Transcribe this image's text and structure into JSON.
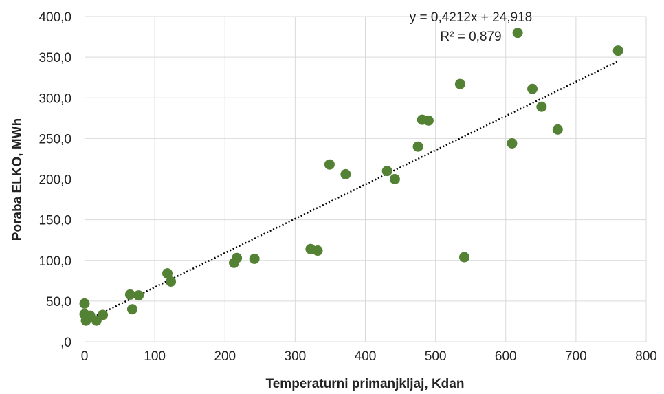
{
  "chart_data": {
    "type": "scatter",
    "xlabel": "Temperaturni primanjkljaj, Kdan",
    "ylabel": "Poraba ELKO, MWh",
    "xlim": [
      0,
      800
    ],
    "ylim": [
      0,
      400
    ],
    "x_ticks": [
      0,
      100,
      200,
      300,
      400,
      500,
      600,
      700,
      800
    ],
    "y_ticks": [
      0,
      50,
      100,
      150,
      200,
      250,
      300,
      350,
      400
    ],
    "x_tick_labels": [
      "0",
      "100",
      "200",
      "300",
      "400",
      "500",
      "600",
      "700",
      "800"
    ],
    "y_tick_labels": [
      ",0",
      "50,0",
      "100,0",
      "150,0",
      "200,0",
      "250,0",
      "300,0",
      "350,0",
      "400,0"
    ],
    "grid": true,
    "marker_color": "#548235",
    "trendline": {
      "slope": 0.4212,
      "intercept": 24.918,
      "x_range": [
        0,
        760
      ],
      "equation_label": "y = 0,4212x + 24,918",
      "r2_label": "R² = 0,879",
      "style": "dotted",
      "color": "#000000"
    },
    "points": [
      {
        "x": 0,
        "y": 47
      },
      {
        "x": 0,
        "y": 34
      },
      {
        "x": 2,
        "y": 26
      },
      {
        "x": 3,
        "y": 30
      },
      {
        "x": 8,
        "y": 32
      },
      {
        "x": 17,
        "y": 26
      },
      {
        "x": 26,
        "y": 33
      },
      {
        "x": 65,
        "y": 58
      },
      {
        "x": 68,
        "y": 40
      },
      {
        "x": 77,
        "y": 57
      },
      {
        "x": 118,
        "y": 84
      },
      {
        "x": 123,
        "y": 74
      },
      {
        "x": 213,
        "y": 97
      },
      {
        "x": 217,
        "y": 103
      },
      {
        "x": 242,
        "y": 102
      },
      {
        "x": 322,
        "y": 114
      },
      {
        "x": 332,
        "y": 112
      },
      {
        "x": 349,
        "y": 218
      },
      {
        "x": 372,
        "y": 206
      },
      {
        "x": 431,
        "y": 210
      },
      {
        "x": 442,
        "y": 200
      },
      {
        "x": 475,
        "y": 240
      },
      {
        "x": 481,
        "y": 273
      },
      {
        "x": 490,
        "y": 272
      },
      {
        "x": 535,
        "y": 317
      },
      {
        "x": 541,
        "y": 104
      },
      {
        "x": 609,
        "y": 244
      },
      {
        "x": 617,
        "y": 380
      },
      {
        "x": 638,
        "y": 311
      },
      {
        "x": 651,
        "y": 289
      },
      {
        "x": 674,
        "y": 261
      },
      {
        "x": 760,
        "y": 358
      }
    ]
  }
}
